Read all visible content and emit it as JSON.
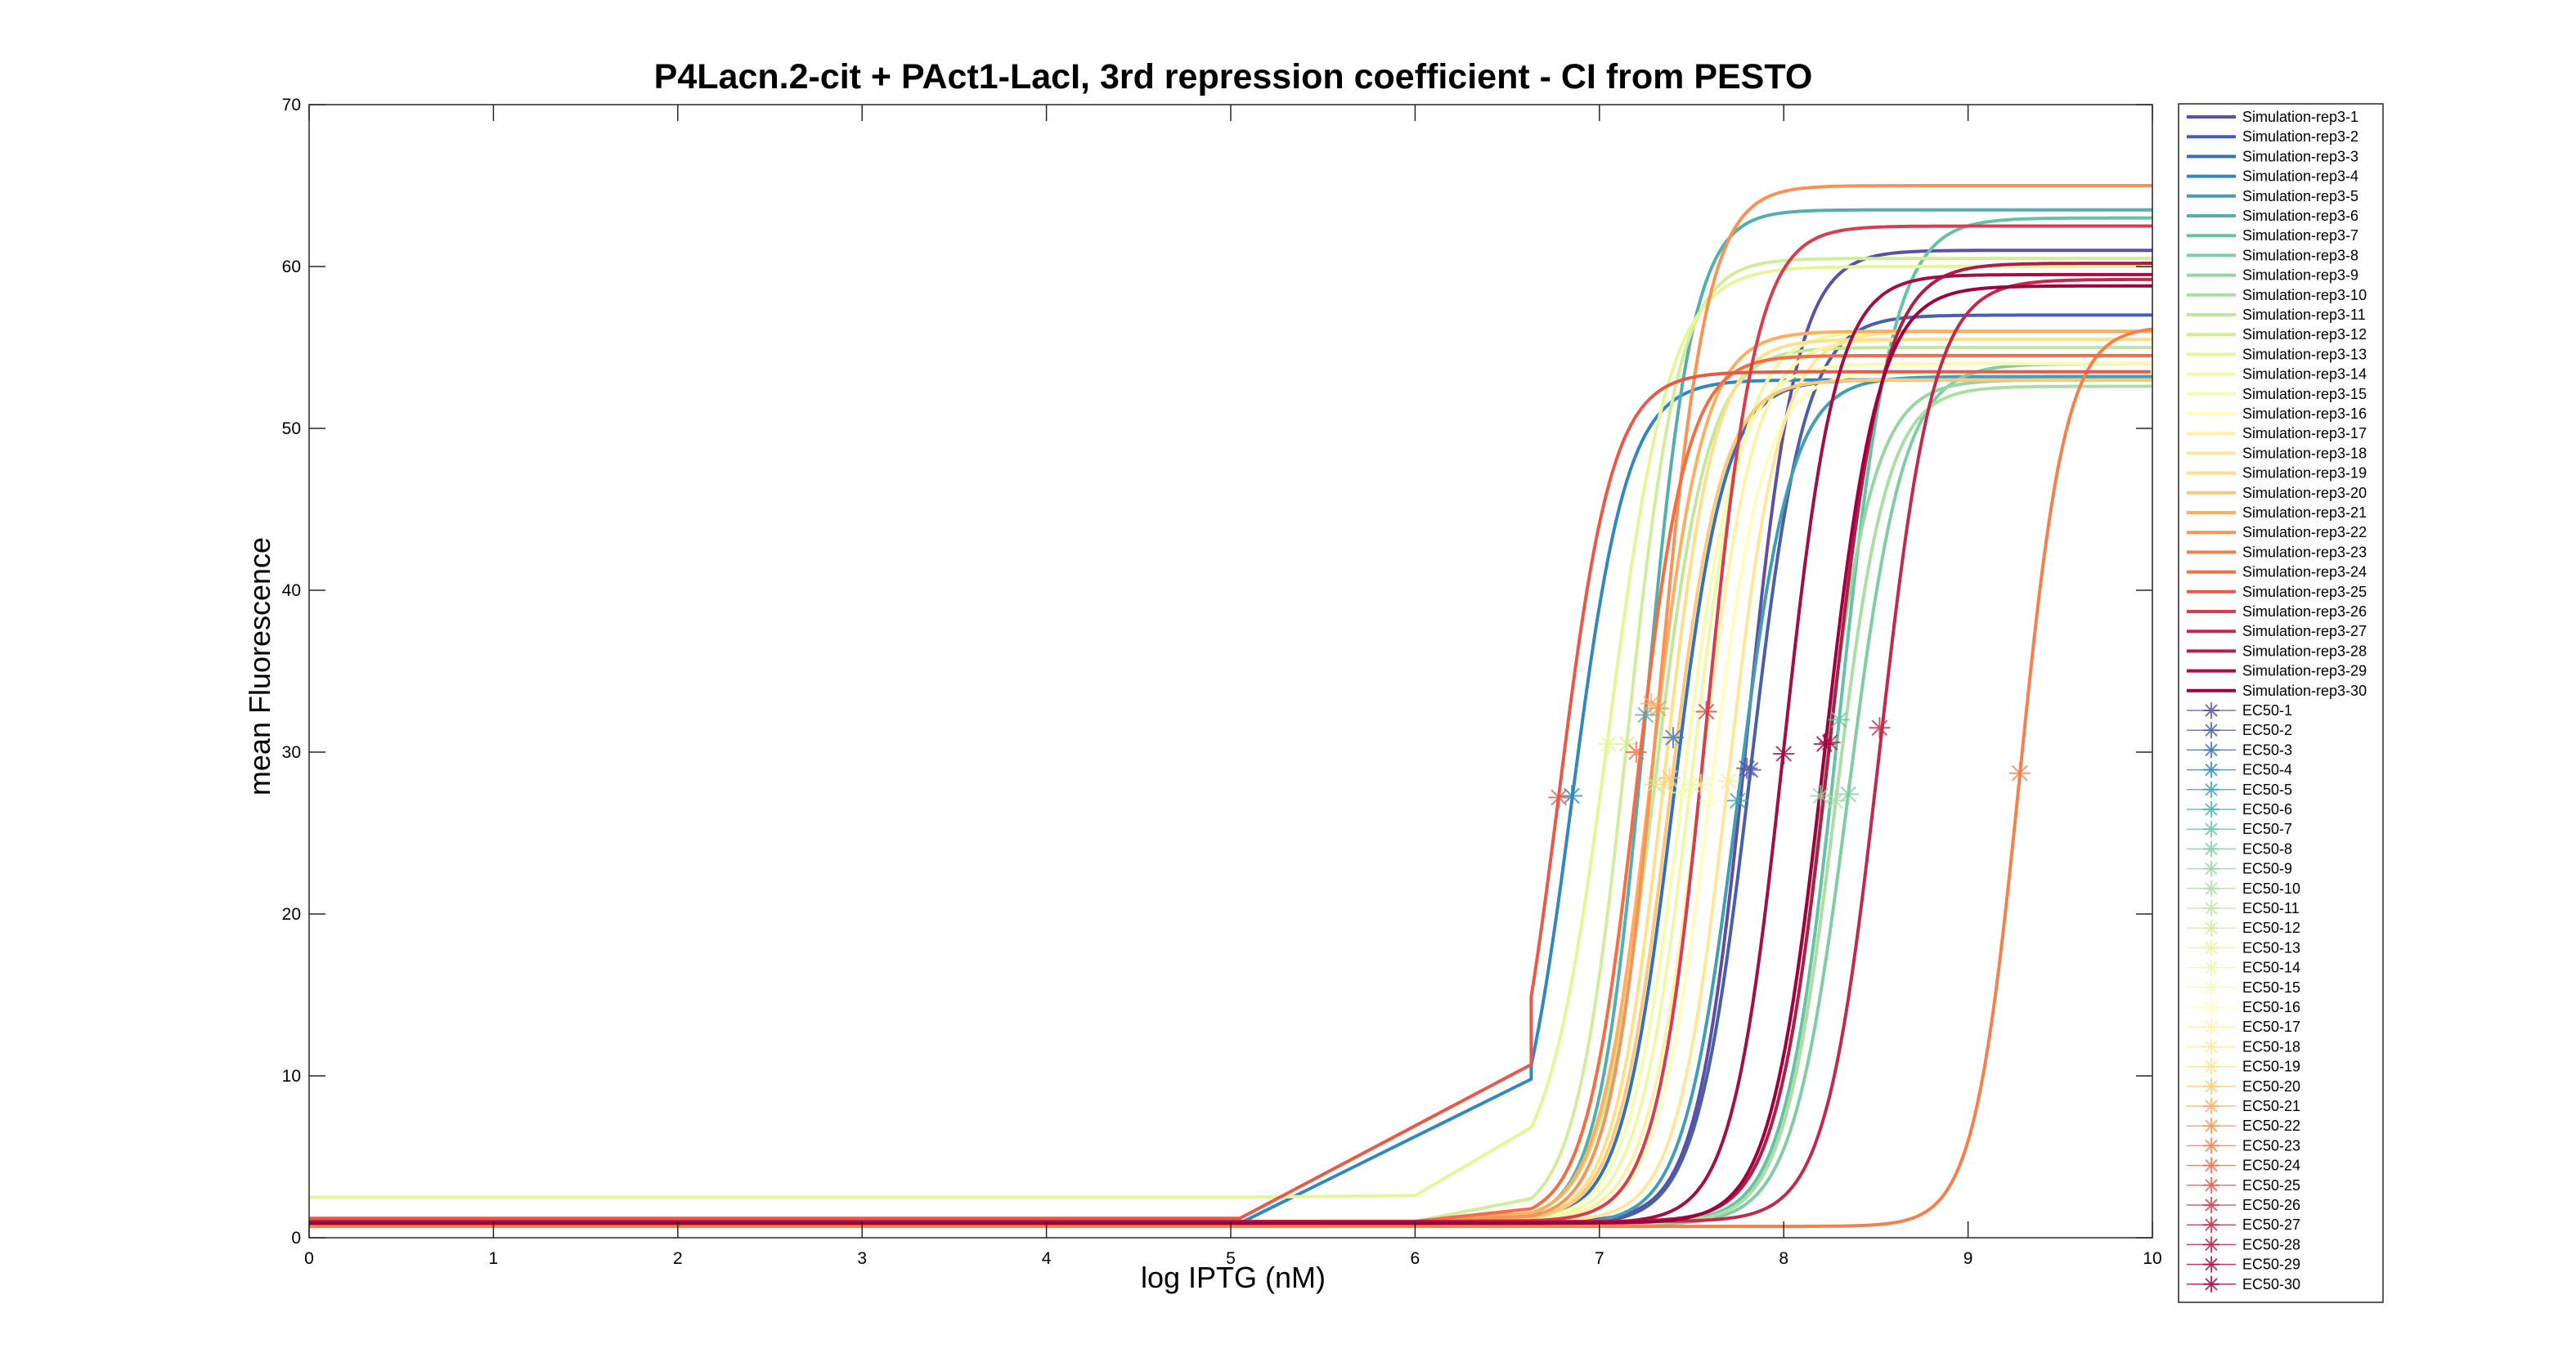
{
  "chart_data": {
    "type": "line",
    "title": "P4Lacn.2-cit + PAct1-LacI, 3rd repression coefficient - CI from PESTO",
    "xlabel": "log IPTG (nM)",
    "ylabel": "mean Fluorescence",
    "xlim": [
      0,
      10
    ],
    "ylim": [
      0,
      70
    ],
    "xticks": [
      "0",
      "1",
      "2",
      "3",
      "4",
      "5",
      "6",
      "7",
      "8",
      "9",
      "10"
    ],
    "yticks": [
      "0",
      "10",
      "20",
      "30",
      "40",
      "50",
      "60",
      "70"
    ],
    "grid": false,
    "legend_position": "outside-right",
    "series": [
      {
        "name": "Simulation-rep3-1",
        "color": "#5e4fa2",
        "low": 1.0,
        "high": 61.0,
        "ec50": 7.8,
        "n": 3.2,
        "ec50_y": 29.0
      },
      {
        "name": "Simulation-rep3-2",
        "color": "#4860aa",
        "low": 0.8,
        "high": 57.0,
        "ec50": 7.82,
        "n": 3.0,
        "ec50_y": 28.9
      },
      {
        "name": "Simulation-rep3-3",
        "color": "#3671b5",
        "low": 0.9,
        "high": 53.0,
        "ec50": 7.4,
        "n": 3.1,
        "ec50_y": 30.9
      },
      {
        "name": "Simulation-rep3-4",
        "color": "#3288bd",
        "low": 0.9,
        "high": 53.0,
        "ec50": 6.85,
        "n": 2.9,
        "ec50_y": 27.3
      },
      {
        "name": "Simulation-rep3-5",
        "color": "#439eb2",
        "low": 0.8,
        "high": 53.2,
        "ec50": 7.75,
        "n": 3.0,
        "ec50_y": 27.0
      },
      {
        "name": "Simulation-rep3-6",
        "color": "#54aead",
        "low": 1.0,
        "high": 63.5,
        "ec50": 7.25,
        "n": 3.4,
        "ec50_y": 32.3
      },
      {
        "name": "Simulation-rep3-7",
        "color": "#66c2a5",
        "low": 0.9,
        "high": 63.0,
        "ec50": 8.3,
        "n": 3.0,
        "ec50_y": 32.0
      },
      {
        "name": "Simulation-rep3-8",
        "color": "#80cca5",
        "low": 0.8,
        "high": 54.0,
        "ec50": 8.35,
        "n": 2.9,
        "ec50_y": 27.4
      },
      {
        "name": "Simulation-rep3-9",
        "color": "#99d5a4",
        "low": 0.8,
        "high": 53.0,
        "ec50": 8.2,
        "n": 3.0,
        "ec50_y": 27.3
      },
      {
        "name": "Simulation-rep3-10",
        "color": "#abdda4",
        "low": 0.9,
        "high": 52.6,
        "ec50": 8.28,
        "n": 3.1,
        "ec50_y": 27.0
      },
      {
        "name": "Simulation-rep3-11",
        "color": "#c3e69c",
        "low": 1.0,
        "high": 55.0,
        "ec50": 7.3,
        "n": 3.0,
        "ec50_y": 28.0
      },
      {
        "name": "Simulation-rep3-12",
        "color": "#d2ec9b",
        "low": 1.0,
        "high": 60.5,
        "ec50": 7.15,
        "n": 3.1,
        "ec50_y": 30.5
      },
      {
        "name": "Simulation-rep3-13",
        "color": "#e6f598",
        "low": 2.5,
        "high": 60.0,
        "ec50": 7.05,
        "n": 2.6,
        "ec50_y": 30.5
      },
      {
        "name": "Simulation-rep3-14",
        "color": "#eef8a6",
        "low": 1.0,
        "high": 56.0,
        "ec50": 7.5,
        "n": 3.0,
        "ec50_y": 28.0
      },
      {
        "name": "Simulation-rep3-15",
        "color": "#f6fbb2",
        "low": 1.0,
        "high": 54.0,
        "ec50": 7.45,
        "n": 3.0,
        "ec50_y": 27.5
      },
      {
        "name": "Simulation-rep3-16",
        "color": "#fffdbe",
        "low": 1.0,
        "high": 53.5,
        "ec50": 7.6,
        "n": 3.0,
        "ec50_y": 27.0
      },
      {
        "name": "Simulation-rep3-17",
        "color": "#fff1a8",
        "low": 1.0,
        "high": 55.5,
        "ec50": 7.55,
        "n": 3.0,
        "ec50_y": 28.0
      },
      {
        "name": "Simulation-rep3-18",
        "color": "#fee79a",
        "low": 1.0,
        "high": 56.0,
        "ec50": 7.7,
        "n": 3.1,
        "ec50_y": 28.2
      },
      {
        "name": "Simulation-rep3-19",
        "color": "#fee08b",
        "low": 1.0,
        "high": 55.5,
        "ec50": 7.35,
        "n": 3.2,
        "ec50_y": 28.0
      },
      {
        "name": "Simulation-rep3-20",
        "color": "#fdc877",
        "low": 1.0,
        "high": 53.0,
        "ec50": 7.38,
        "n": 3.1,
        "ec50_y": 28.4
      },
      {
        "name": "Simulation-rep3-21",
        "color": "#fdae61",
        "low": 1.0,
        "high": 56.0,
        "ec50": 7.28,
        "n": 3.1,
        "ec50_y": 33.0
      },
      {
        "name": "Simulation-rep3-22",
        "color": "#f99355",
        "low": 1.0,
        "high": 65.0,
        "ec50": 7.32,
        "n": 3.3,
        "ec50_y": 32.7
      },
      {
        "name": "Simulation-rep3-23",
        "color": "#f4804d",
        "low": 0.7,
        "high": 56.3,
        "ec50": 9.28,
        "n": 3.5,
        "ec50_y": 28.7
      },
      {
        "name": "Simulation-rep3-24",
        "color": "#f46d43",
        "low": 1.0,
        "high": 54.5,
        "ec50": 7.2,
        "n": 3.2,
        "ec50_y": 30.0
      },
      {
        "name": "Simulation-rep3-25",
        "color": "#e55a48",
        "low": 1.2,
        "high": 53.5,
        "ec50": 6.78,
        "n": 3.0,
        "ec50_y": 27.2
      },
      {
        "name": "Simulation-rep3-26",
        "color": "#d53e4f",
        "low": 1.0,
        "high": 62.5,
        "ec50": 7.58,
        "n": 3.2,
        "ec50_y": 32.5
      },
      {
        "name": "Simulation-rep3-27",
        "color": "#c12b4b",
        "low": 1.0,
        "high": 59.2,
        "ec50": 8.52,
        "n": 3.0,
        "ec50_y": 31.5
      },
      {
        "name": "Simulation-rep3-28",
        "color": "#b01e47",
        "low": 1.0,
        "high": 60.2,
        "ec50": 8.25,
        "n": 3.0,
        "ec50_y": 30.6
      },
      {
        "name": "Simulation-rep3-29",
        "color": "#a20e46",
        "low": 0.9,
        "high": 59.5,
        "ec50": 8.0,
        "n": 3.1,
        "ec50_y": 29.9
      },
      {
        "name": "Simulation-rep3-30",
        "color": "#9e0142",
        "low": 0.9,
        "high": 58.8,
        "ec50": 8.22,
        "n": 3.0,
        "ec50_y": 30.5
      }
    ],
    "ec50_labels": [
      "EC50-1",
      "EC50-2",
      "EC50-3",
      "EC50-4",
      "EC50-5",
      "EC50-6",
      "EC50-7",
      "EC50-8",
      "EC50-9",
      "EC50-10",
      "EC50-11",
      "EC50-12",
      "EC50-13",
      "EC50-14",
      "EC50-15",
      "EC50-16",
      "EC50-17",
      "EC50-18",
      "EC50-19",
      "EC50-20",
      "EC50-21",
      "EC50-22",
      "EC50-23",
      "EC50-24",
      "EC50-25",
      "EC50-26",
      "EC50-27",
      "EC50-28",
      "EC50-29",
      "EC50-30"
    ]
  }
}
